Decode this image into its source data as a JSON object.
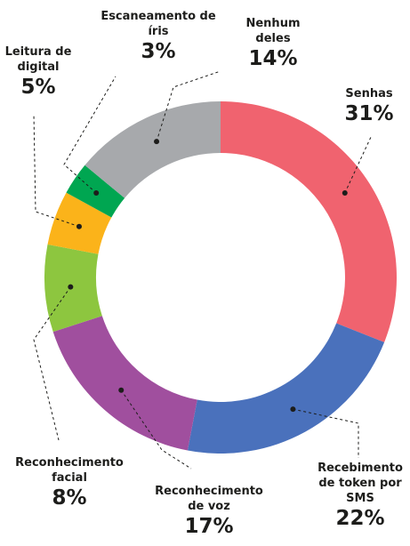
{
  "chart_data": {
    "type": "donut",
    "categories": [
      "Senhas",
      "Recebimento de token por SMS",
      "Reconhecimento de voz",
      "Reconhecimento facial",
      "Leitura de digital",
      "Escaneamento de íris",
      "Nenhum deles"
    ],
    "values": [
      31,
      22,
      17,
      8,
      5,
      3,
      14
    ],
    "value_labels": [
      "31%",
      "22%",
      "17%",
      "8%",
      "5%",
      "3%",
      "14%"
    ],
    "colors": [
      "#f0636f",
      "#4a71bc",
      "#a04f9e",
      "#8dc63f",
      "#fbb31a",
      "#00a651",
      "#a7a9ac"
    ]
  }
}
